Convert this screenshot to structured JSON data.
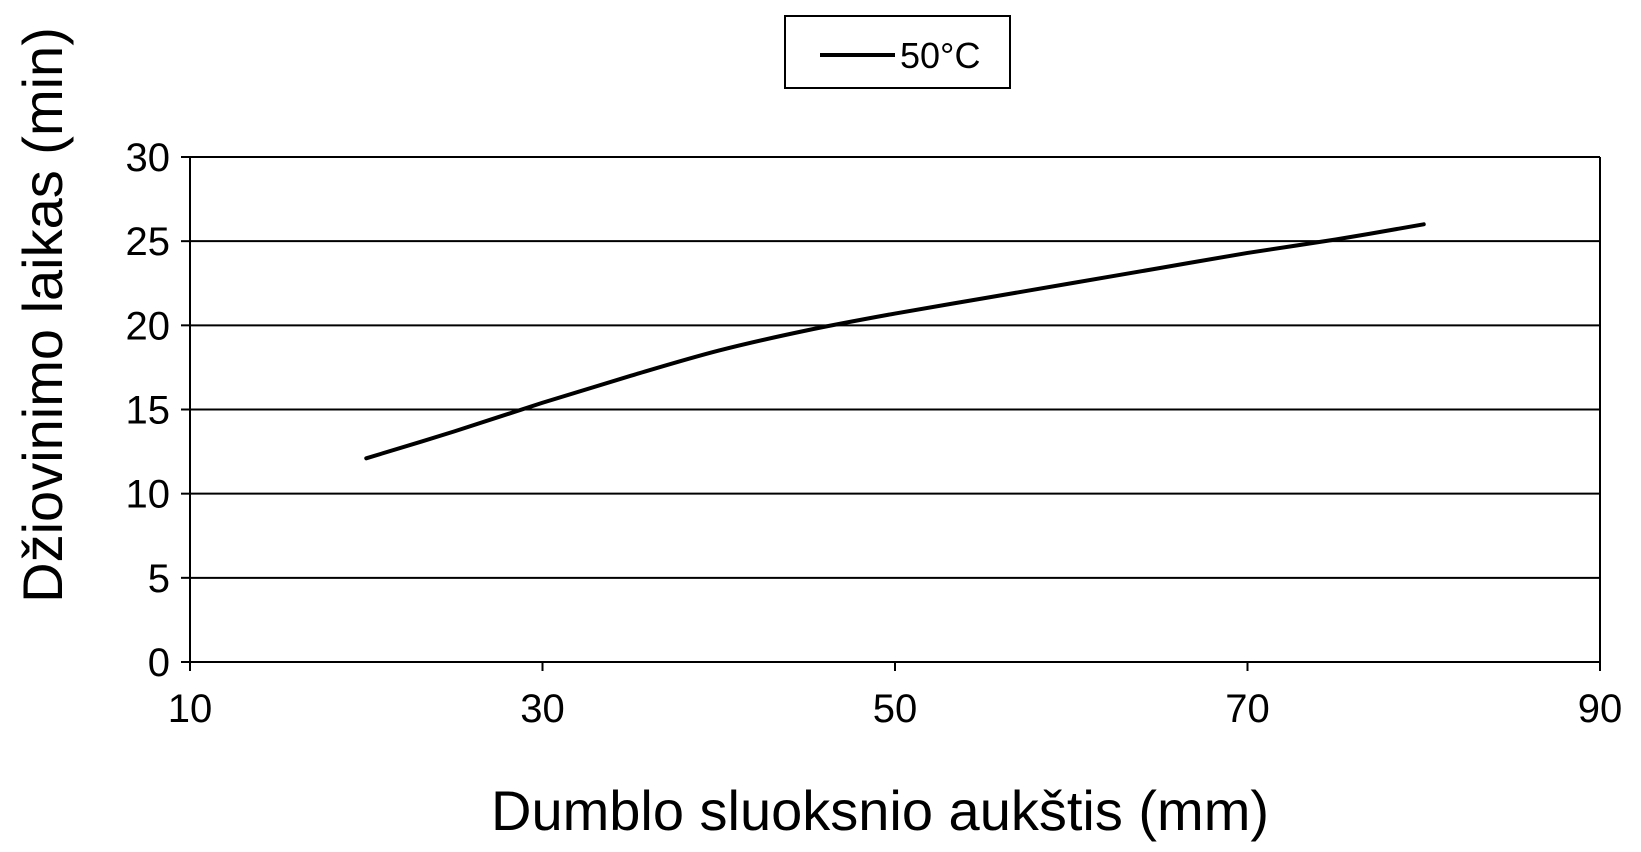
{
  "chart_data": {
    "type": "line",
    "title": "",
    "xlabel": "Dumblo sluoksnio aukštis (mm)",
    "ylabel": "Džiovinimo laikas (min)",
    "xlim": [
      10,
      90
    ],
    "ylim": [
      0,
      30
    ],
    "x_ticks": [
      "10",
      "30",
      "50",
      "70",
      "90"
    ],
    "y_ticks": [
      "0",
      "5",
      "10",
      "15",
      "20",
      "25",
      "30"
    ],
    "grid": "horizontal",
    "legend": {
      "placement": "top-center",
      "entries": [
        "50°C"
      ]
    },
    "series": [
      {
        "name": "50°C",
        "color": "#000000",
        "x": [
          20,
          25,
          30,
          35,
          40,
          45,
          50,
          55,
          60,
          65,
          70,
          75,
          80
        ],
        "y": [
          12.1,
          13.7,
          15.4,
          17.0,
          18.5,
          19.7,
          20.7,
          21.6,
          22.5,
          23.4,
          24.3,
          25.1,
          26.0
        ]
      }
    ]
  }
}
